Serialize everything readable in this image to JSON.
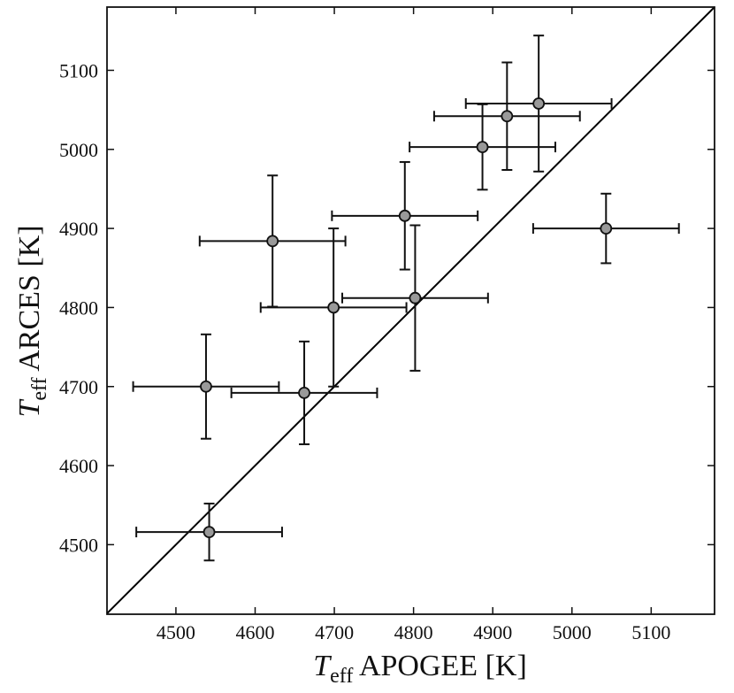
{
  "chart_data": {
    "type": "scatter",
    "title": "",
    "xlabel": {
      "symbol": "T",
      "subscript": "eff",
      "text": " APOGEE [K]"
    },
    "ylabel": {
      "symbol": "T",
      "subscript": "eff",
      "text": " ARCES [K]"
    },
    "xlim": [
      4413,
      5180
    ],
    "ylim": [
      4412,
      5180
    ],
    "xticks": [
      4500,
      4600,
      4700,
      4800,
      4900,
      5000,
      5100
    ],
    "yticks": [
      4500,
      4600,
      4700,
      4800,
      4900,
      5000,
      5100
    ],
    "grid": false,
    "legend": "none",
    "reference_line": {
      "type": "one-to-one",
      "color": "#000000"
    },
    "marker_color": "#999999",
    "marker_edge_color": "#111111",
    "points": [
      {
        "x": 4542,
        "y": 4516,
        "xerr": 92,
        "yerr": 36
      },
      {
        "x": 4538,
        "y": 4700,
        "xerr": 92,
        "yerr": 66
      },
      {
        "x": 4662,
        "y": 4692,
        "xerr": 92,
        "yerr": 65
      },
      {
        "x": 4622,
        "y": 4884,
        "xerr": 92,
        "yerr": 83
      },
      {
        "x": 4699,
        "y": 4800,
        "xerr": 92,
        "yerr": 100
      },
      {
        "x": 4802,
        "y": 4812,
        "xerr": 92,
        "yerr": 92
      },
      {
        "x": 4789,
        "y": 4916,
        "xerr": 92,
        "yerr": 68
      },
      {
        "x": 4887,
        "y": 5003,
        "xerr": 92,
        "yerr": 54
      },
      {
        "x": 4918,
        "y": 5042,
        "xerr": 92,
        "yerr": 68
      },
      {
        "x": 4958,
        "y": 5058,
        "xerr": 92,
        "yerr": 86
      },
      {
        "x": 5043,
        "y": 4900,
        "xerr": 92,
        "yerr": 44
      }
    ]
  }
}
